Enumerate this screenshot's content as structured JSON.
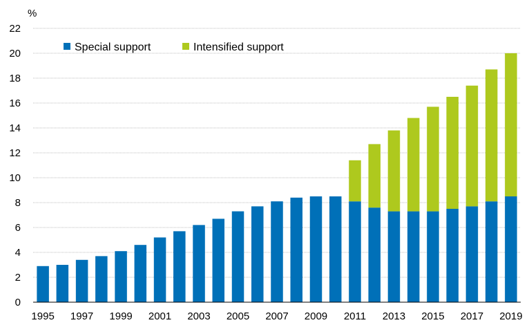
{
  "chart_data": {
    "type": "bar",
    "stacked": true,
    "ylabel": "%",
    "ylim": [
      0,
      22
    ],
    "yticks": [
      0,
      2,
      4,
      6,
      8,
      10,
      12,
      14,
      16,
      18,
      20,
      22
    ],
    "grid": true,
    "legend_position": "top-left",
    "categories": [
      "1995",
      "1996",
      "1997",
      "1998",
      "1999",
      "2000",
      "2001",
      "2002",
      "2003",
      "2004",
      "2005",
      "2006",
      "2007",
      "2008",
      "2009",
      "2010",
      "2011",
      "2012",
      "2013",
      "2014",
      "2015",
      "2016",
      "2017",
      "2018",
      "2019"
    ],
    "xtick_labels": [
      "1995",
      "1997",
      "1999",
      "2001",
      "2003",
      "2005",
      "2007",
      "2009",
      "2011",
      "2013",
      "2015",
      "2017",
      "2019"
    ],
    "series": [
      {
        "name": "Special support",
        "color": "#0070b8",
        "values": [
          2.9,
          3.0,
          3.4,
          3.7,
          4.1,
          4.6,
          5.2,
          5.7,
          6.2,
          6.7,
          7.3,
          7.7,
          8.1,
          8.4,
          8.5,
          8.5,
          8.1,
          7.6,
          7.3,
          7.3,
          7.3,
          7.5,
          7.7,
          8.1,
          8.5
        ]
      },
      {
        "name": "Intensified support",
        "color": "#aec91e",
        "values": [
          0,
          0,
          0,
          0,
          0,
          0,
          0,
          0,
          0,
          0,
          0,
          0,
          0,
          0,
          0,
          0,
          3.3,
          5.1,
          6.5,
          7.5,
          8.4,
          9.0,
          9.7,
          10.6,
          11.5
        ]
      }
    ]
  }
}
